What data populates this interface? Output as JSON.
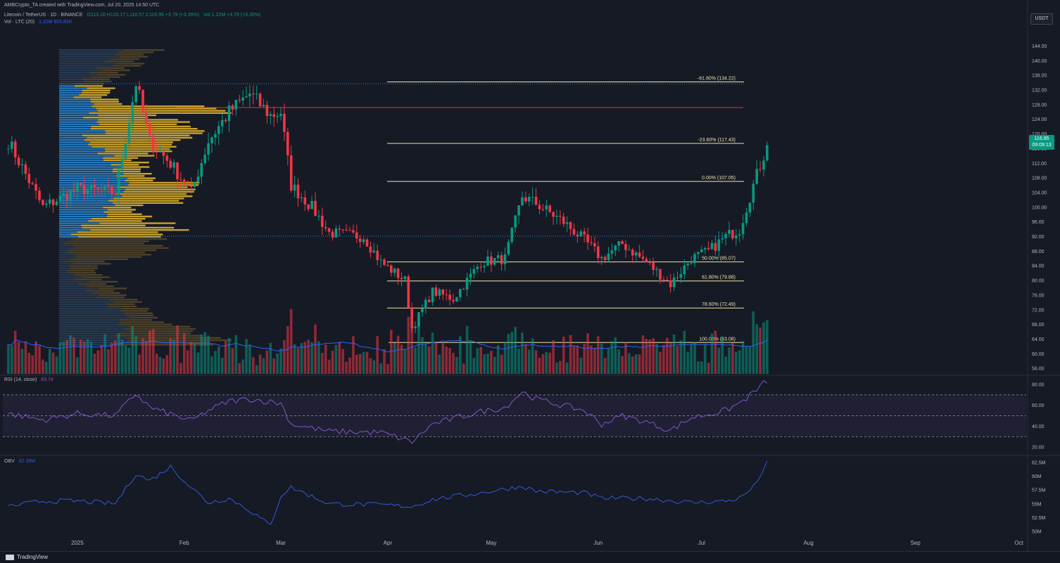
{
  "header": {
    "creator": "AMBCrypto_TA created with TradingView.com, Jul 20, 2025 14:50 UTC",
    "symbol": "Litecoin / TetherUS · 1D · BINANCE",
    "ohlc": "O113.16 H120.17 L110.57 C116.95 +3.79 (+3.35%)",
    "vol_inline": "Vol 1.22M +3.79 (+3.35%)",
    "vol_study": "Vol · LTC (20)",
    "vol_study_values": "1.22M 605.81K",
    "currency": "USDT"
  },
  "current_price": {
    "value": "116.95",
    "countdown": "09:09:13",
    "color": "#089981"
  },
  "footer": {
    "brand": "TradingView"
  },
  "colors": {
    "background": "#161a25",
    "up": "#089981",
    "down": "#f23645",
    "fib_line": "#f0e6a0",
    "resistance": "#e0342b",
    "vp_blue": "#2a8ad6",
    "vp_yellow": "#e6b82e",
    "rsi": "#7e57c2",
    "obv": "#2f5bd3",
    "vol_ma": "#2962ff"
  },
  "chart_data": [
    {
      "type": "candlestick",
      "title": "LTCUSDT 1D",
      "x_axis_labels": [
        "2025",
        "Feb",
        "Mar",
        "Apr",
        "May",
        "Jun",
        "Jul",
        "Aug",
        "Sep",
        "Oct"
      ],
      "y_axis_labels": [
        "144.00",
        "140.00",
        "136.00",
        "132.00",
        "128.00",
        "124.00",
        "120.00",
        "116.00",
        "112.00",
        "108.00",
        "104.00",
        "100.00",
        "96.00",
        "92.00",
        "88.00",
        "84.00",
        "80.00",
        "76.00",
        "72.00",
        "68.00",
        "64.00",
        "60.00",
        "56.00"
      ],
      "ylim": [
        54.5,
        148.5
      ],
      "fib_levels": [
        {
          "label": "-61.80% (134.22)",
          "price": 134.22
        },
        {
          "label": "-23.60% (117.43)",
          "price": 117.43
        },
        {
          "label": "0.00% (107.05)",
          "price": 107.05
        },
        {
          "label": "50.00% (85.07)",
          "price": 85.07
        },
        {
          "label": "61.80% (79.88)",
          "price": 79.88
        },
        {
          "label": "78.60% (72.49)",
          "price": 72.49
        },
        {
          "label": "100.00% (63.08)",
          "price": 63.08
        }
      ],
      "resistance_level": 127.2,
      "value_area_lines": [
        133.7,
        92.1
      ],
      "anchor_points": [
        {
          "date": "2024-12-12",
          "close": 118
        },
        {
          "date": "2024-12-22",
          "close": 100
        },
        {
          "date": "2025-01-01",
          "close": 105
        },
        {
          "date": "2025-01-12",
          "close": 104
        },
        {
          "date": "2025-01-18",
          "close": 134
        },
        {
          "date": "2025-01-22",
          "close": 118
        },
        {
          "date": "2025-01-28",
          "close": 112
        },
        {
          "date": "2025-02-03",
          "close": 104
        },
        {
          "date": "2025-02-08",
          "close": 118
        },
        {
          "date": "2025-02-14",
          "close": 126
        },
        {
          "date": "2025-02-20",
          "close": 131
        },
        {
          "date": "2025-02-26",
          "close": 125
        },
        {
          "date": "2025-03-01",
          "close": 126
        },
        {
          "date": "2025-03-04",
          "close": 106
        },
        {
          "date": "2025-03-10",
          "close": 100
        },
        {
          "date": "2025-03-15",
          "close": 93
        },
        {
          "date": "2025-03-25",
          "close": 92
        },
        {
          "date": "2025-03-30",
          "close": 85
        },
        {
          "date": "2025-04-06",
          "close": 80
        },
        {
          "date": "2025-04-08",
          "close": 67
        },
        {
          "date": "2025-04-14",
          "close": 77
        },
        {
          "date": "2025-04-20",
          "close": 75
        },
        {
          "date": "2025-04-28",
          "close": 85
        },
        {
          "date": "2025-05-05",
          "close": 86
        },
        {
          "date": "2025-05-10",
          "close": 103
        },
        {
          "date": "2025-05-14",
          "close": 101
        },
        {
          "date": "2025-05-22",
          "close": 96
        },
        {
          "date": "2025-05-28",
          "close": 91
        },
        {
          "date": "2025-06-02",
          "close": 86
        },
        {
          "date": "2025-06-08",
          "close": 90
        },
        {
          "date": "2025-06-15",
          "close": 85
        },
        {
          "date": "2025-06-22",
          "close": 79
        },
        {
          "date": "2025-06-28",
          "close": 86
        },
        {
          "date": "2025-07-03",
          "close": 88
        },
        {
          "date": "2025-07-08",
          "close": 92
        },
        {
          "date": "2025-07-12",
          "close": 94
        },
        {
          "date": "2025-07-16",
          "close": 106
        },
        {
          "date": "2025-07-20",
          "close": 116.95
        }
      ]
    },
    {
      "type": "line",
      "title": "RSI (14, close)",
      "value_label": "83.74",
      "y_axis_labels": [
        "80.00",
        "60.00",
        "40.00",
        "20.00"
      ],
      "ylim": [
        14,
        86
      ],
      "bands": [
        70,
        50,
        30
      ],
      "anchor_points": [
        {
          "date": "2024-12-12",
          "value": 52
        },
        {
          "date": "2024-12-22",
          "value": 46
        },
        {
          "date": "2025-01-01",
          "value": 52
        },
        {
          "date": "2025-01-12",
          "value": 50
        },
        {
          "date": "2025-01-18",
          "value": 71
        },
        {
          "date": "2025-01-22",
          "value": 58
        },
        {
          "date": "2025-02-03",
          "value": 45
        },
        {
          "date": "2025-02-08",
          "value": 55
        },
        {
          "date": "2025-02-14",
          "value": 64
        },
        {
          "date": "2025-02-20",
          "value": 66
        },
        {
          "date": "2025-03-01",
          "value": 62
        },
        {
          "date": "2025-03-04",
          "value": 42
        },
        {
          "date": "2025-03-15",
          "value": 35
        },
        {
          "date": "2025-03-30",
          "value": 34
        },
        {
          "date": "2025-04-08",
          "value": 25
        },
        {
          "date": "2025-04-14",
          "value": 42
        },
        {
          "date": "2025-04-28",
          "value": 54
        },
        {
          "date": "2025-05-05",
          "value": 58
        },
        {
          "date": "2025-05-10",
          "value": 73
        },
        {
          "date": "2025-05-14",
          "value": 66
        },
        {
          "date": "2025-05-28",
          "value": 55
        },
        {
          "date": "2025-06-02",
          "value": 42
        },
        {
          "date": "2025-06-08",
          "value": 50
        },
        {
          "date": "2025-06-15",
          "value": 44
        },
        {
          "date": "2025-06-22",
          "value": 36
        },
        {
          "date": "2025-06-28",
          "value": 48
        },
        {
          "date": "2025-07-08",
          "value": 55
        },
        {
          "date": "2025-07-12",
          "value": 62
        },
        {
          "date": "2025-07-16",
          "value": 72
        },
        {
          "date": "2025-07-20",
          "value": 83.74
        }
      ]
    },
    {
      "type": "line",
      "title": "OBV",
      "value_label": "62.39M",
      "y_axis_labels": [
        "62.5M",
        "60M",
        "57.5M",
        "55M",
        "52.5M",
        "50M"
      ],
      "ylim": [
        49.2,
        63.3
      ],
      "anchor_points": [
        {
          "date": "2024-12-12",
          "value": 54.5
        },
        {
          "date": "2024-12-22",
          "value": 55.5
        },
        {
          "date": "2025-01-01",
          "value": 55.5
        },
        {
          "date": "2025-01-12",
          "value": 55.0
        },
        {
          "date": "2025-01-18",
          "value": 60.5
        },
        {
          "date": "2025-01-22",
          "value": 59.2
        },
        {
          "date": "2025-01-28",
          "value": 61.8
        },
        {
          "date": "2025-02-03",
          "value": 58.0
        },
        {
          "date": "2025-02-08",
          "value": 55.2
        },
        {
          "date": "2025-02-14",
          "value": 56.0
        },
        {
          "date": "2025-02-20",
          "value": 53.8
        },
        {
          "date": "2025-02-26",
          "value": 51.0
        },
        {
          "date": "2025-03-01",
          "value": 56.5
        },
        {
          "date": "2025-03-04",
          "value": 58.0
        },
        {
          "date": "2025-03-15",
          "value": 55.0
        },
        {
          "date": "2025-03-30",
          "value": 54.8
        },
        {
          "date": "2025-04-08",
          "value": 54.5
        },
        {
          "date": "2025-04-14",
          "value": 55.8
        },
        {
          "date": "2025-04-28",
          "value": 57.0
        },
        {
          "date": "2025-05-10",
          "value": 58.2
        },
        {
          "date": "2025-05-14",
          "value": 57.3
        },
        {
          "date": "2025-05-28",
          "value": 57.0
        },
        {
          "date": "2025-06-02",
          "value": 56.0
        },
        {
          "date": "2025-06-15",
          "value": 56.0
        },
        {
          "date": "2025-06-28",
          "value": 55.2
        },
        {
          "date": "2025-07-08",
          "value": 55.5
        },
        {
          "date": "2025-07-12",
          "value": 56.0
        },
        {
          "date": "2025-07-16",
          "value": 58.0
        },
        {
          "date": "2025-07-20",
          "value": 62.39
        }
      ]
    }
  ]
}
